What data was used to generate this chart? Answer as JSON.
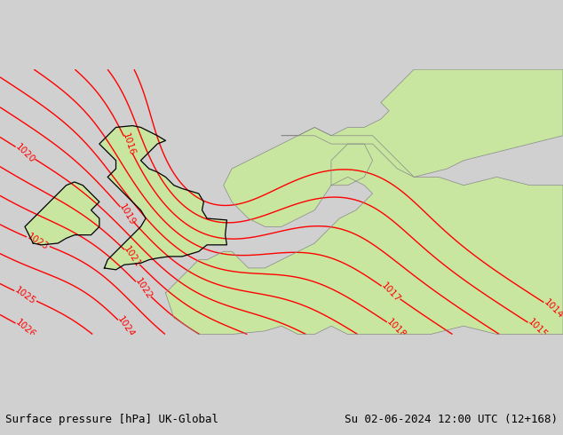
{
  "title_left": "Surface pressure [hPa] UK-Global",
  "title_right": "Su 02-06-2024 12:00 UTC (12+168)",
  "sea_color": "#d0d0d0",
  "land_color": "#c8e6a0",
  "coast_color": "#000000",
  "contour_color": "#ff0000",
  "border_color": "#888888",
  "text_color": "#000000",
  "footer_color": "#ffffff",
  "fig_width": 6.34,
  "fig_height": 4.9,
  "dpi": 100,
  "contour_linewidth": 1.0,
  "label_fontsize": 7.5,
  "footer_fontsize": 9,
  "lon_min": -12,
  "lon_max": 22,
  "lat_min": 46,
  "lat_max": 62
}
